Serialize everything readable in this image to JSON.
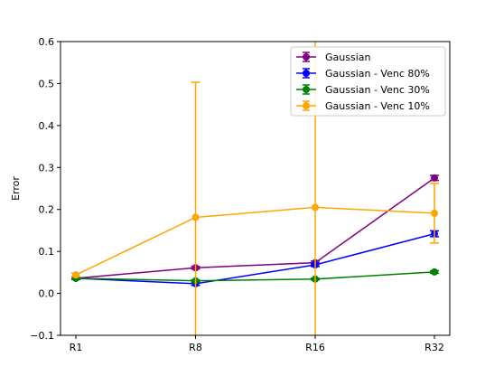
{
  "chart_data": {
    "type": "line",
    "title": "",
    "xlabel": "",
    "ylabel": "Error",
    "categories": [
      "R1",
      "R8",
      "R16",
      "R32"
    ],
    "ylim": [
      -0.1,
      0.6
    ],
    "yticks": [
      -0.1,
      0.0,
      0.1,
      0.2,
      0.3,
      0.4,
      0.5,
      0.6
    ],
    "ytick_labels": [
      "−0.1",
      "0.0",
      "0.1",
      "0.2",
      "0.3",
      "0.4",
      "0.5",
      "0.6"
    ],
    "grid": false,
    "legend_position": "top-right",
    "series": [
      {
        "name": "Gaussian",
        "color": "#800080",
        "values": [
          0.036,
          0.061,
          0.073,
          0.275
        ],
        "errors": [
          0.003,
          0.003,
          0.004,
          0.006
        ]
      },
      {
        "name": "Gaussian - Venc 80%",
        "color": "#0000ff",
        "values": [
          0.036,
          0.023,
          0.068,
          0.142
        ],
        "errors": [
          0.003,
          0.004,
          0.004,
          0.007
        ]
      },
      {
        "name": "Gaussian - Venc 30%",
        "color": "#008000",
        "values": [
          0.036,
          0.03,
          0.034,
          0.051
        ],
        "errors": [
          0.002,
          0.002,
          0.002,
          0.003
        ]
      },
      {
        "name": "Gaussian - Venc 10%",
        "color": "#ffa500",
        "values": [
          0.044,
          0.181,
          0.205,
          0.191
        ],
        "errors": [
          0.004,
          0.322,
          0.43,
          0.071
        ]
      }
    ]
  }
}
